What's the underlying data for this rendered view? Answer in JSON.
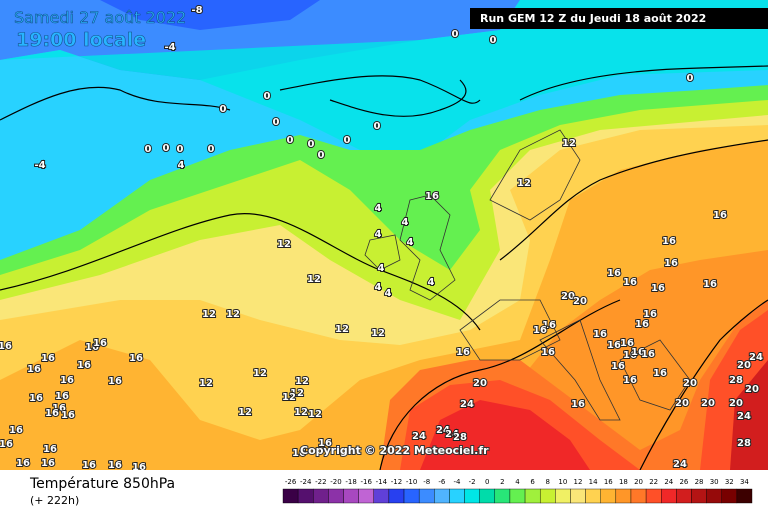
{
  "header": {
    "title": "Samedi 27 août 2022",
    "subtitle": "19:00 locale",
    "run": "Run GEM 12 Z du Jeudi 18 août 2022"
  },
  "copyright": "Copyright © 2022 Meteociel.fr",
  "footer": {
    "title": "Température 850hPa",
    "lead": "(+ 222h)"
  },
  "colorbar": {
    "ticks": [
      -26,
      -24,
      -22,
      -20,
      -18,
      -16,
      -14,
      -12,
      -10,
      -8,
      -6,
      -4,
      -2,
      0,
      2,
      4,
      6,
      8,
      10,
      12,
      14,
      16,
      18,
      20,
      22,
      24,
      26,
      28,
      30,
      32,
      34
    ],
    "colors": [
      "#3a0046",
      "#55106e",
      "#70208c",
      "#8c32a8",
      "#a848c0",
      "#c064d4",
      "#6040d8",
      "#2840f0",
      "#2864ff",
      "#3c8cff",
      "#50b4ff",
      "#28d2ff",
      "#00e6e6",
      "#00dcaa",
      "#28e678",
      "#64f050",
      "#a0f03c",
      "#c8f032",
      "#f0f064",
      "#fae678",
      "#ffd250",
      "#ffb432",
      "#ff9628",
      "#ff7828",
      "#ff5028",
      "#f02828",
      "#d21e1e",
      "#b41414",
      "#960a0a",
      "#780000",
      "#3c0000"
    ]
  },
  "contour_labels": [
    -8,
    -4,
    -4,
    0,
    0,
    0,
    0,
    0,
    0,
    0,
    0,
    0,
    0,
    0,
    4,
    0,
    0,
    0,
    0,
    12,
    12,
    4,
    4,
    4,
    4,
    4,
    4,
    4,
    4,
    12,
    12,
    12,
    12,
    12,
    12,
    16,
    16,
    16,
    16,
    16,
    16,
    16,
    16,
    16,
    12,
    12,
    16,
    16,
    16,
    16,
    16,
    16,
    16,
    16,
    16,
    16,
    16,
    16,
    16,
    12,
    12,
    12,
    12,
    12,
    12,
    16,
    16,
    16,
    20,
    24,
    24,
    24,
    24,
    28,
    16,
    16,
    16,
    16,
    20,
    20,
    16,
    16,
    16,
    16,
    16,
    16,
    16,
    16,
    16,
    16,
    16,
    16,
    16,
    16,
    16,
    16,
    16,
    16,
    20,
    20,
    20,
    20,
    24,
    28,
    28,
    20,
    24,
    20,
    24,
    16
  ]
}
